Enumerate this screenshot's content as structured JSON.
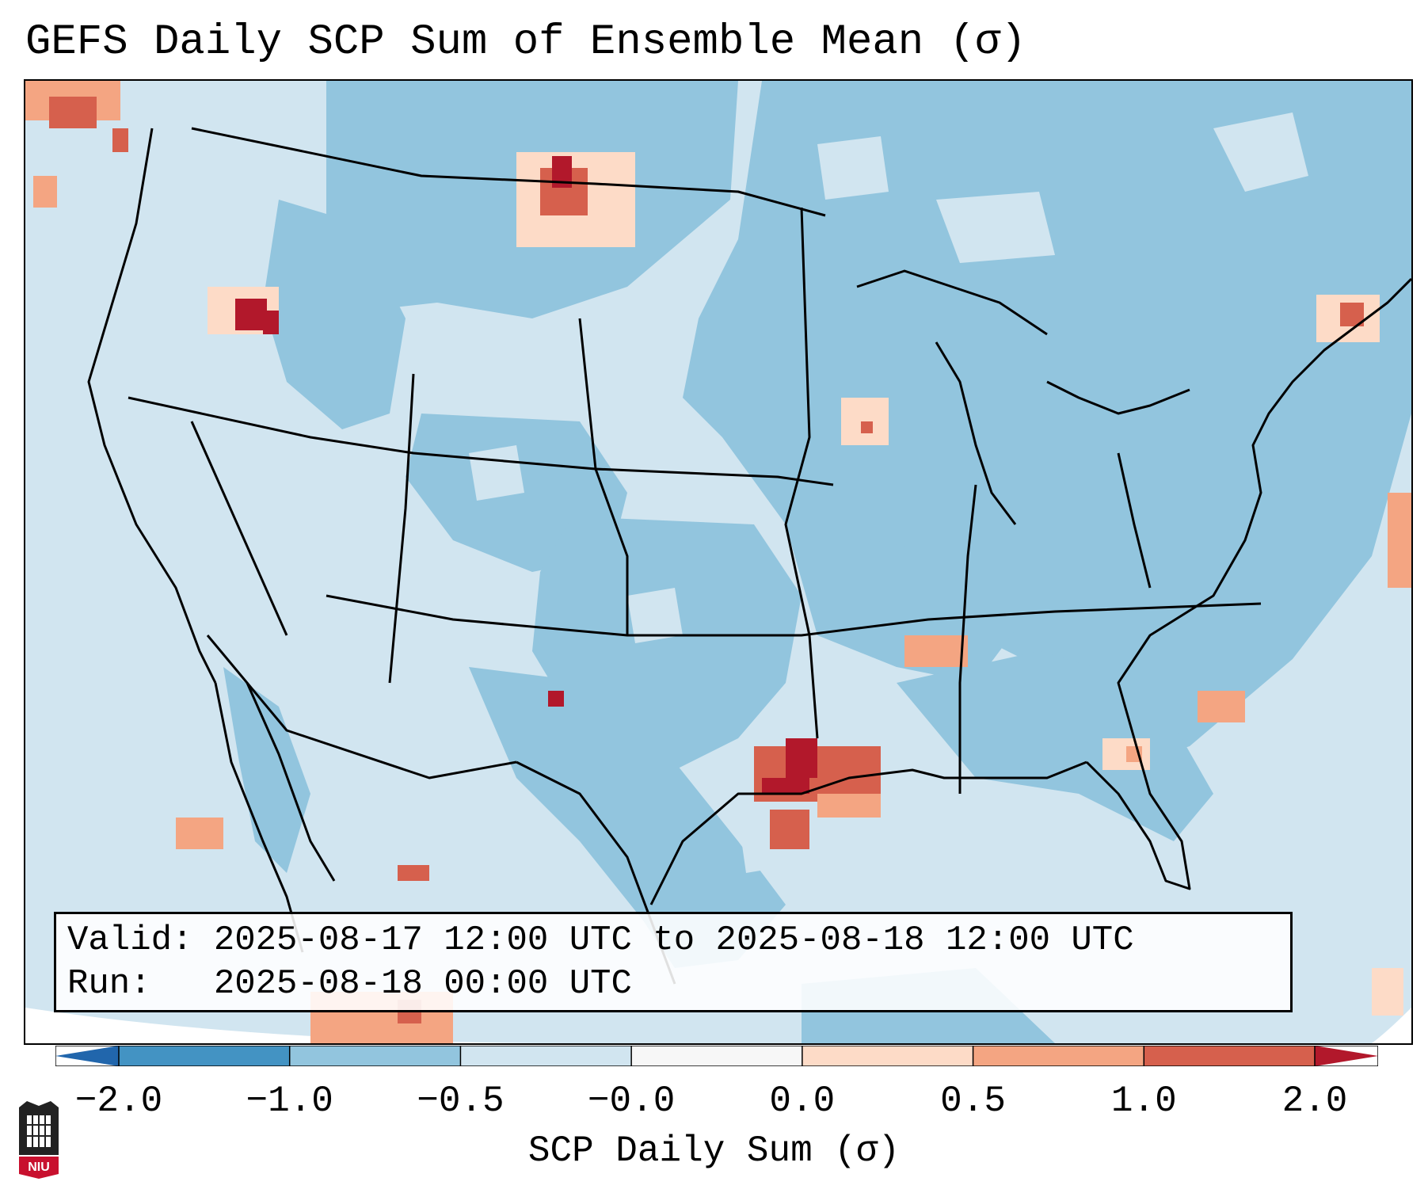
{
  "title": "GEFS Daily SCP Sum of Ensemble Mean (σ)",
  "info": {
    "valid": "Valid: 2025-08-17 12:00 UTC to 2025-08-18 12:00 UTC",
    "run": "Run:   2025-08-18 00:00 UTC"
  },
  "colorbar": {
    "label": "SCP Daily Sum (σ)",
    "ticks": [
      "−2.0",
      "−1.0",
      "−0.5",
      "−0.0",
      "0.0",
      "0.5",
      "1.0",
      "2.0"
    ],
    "colors": [
      "#4393c3",
      "#92c5de",
      "#d1e5f0",
      "#f7f7f7",
      "#fddbc7",
      "#f4a582",
      "#d6604d",
      "#b2182b"
    ],
    "extend_low_color": "#2166ac",
    "extend_high_color": "#b2182b"
  },
  "map": {
    "background_color": "#d1e5f0",
    "hotspots": [
      {
        "region": "Texas/Louisiana coast",
        "value": 2.0
      },
      {
        "region": "Southeast Idaho",
        "value": 2.0
      },
      {
        "region": "Northeast Montana",
        "value": 2.0
      },
      {
        "region": "West Texas",
        "value": 2.0
      },
      {
        "region": "Eastern Iowa",
        "value": 1.0
      },
      {
        "region": "Northern Mississippi",
        "value": 0.5
      },
      {
        "region": "Central Florida",
        "value": 0.5
      },
      {
        "region": "Maine / New Brunswick",
        "value": 1.0
      },
      {
        "region": "Western Atlantic",
        "value": 0.5
      }
    ]
  },
  "logo": {
    "text": "NIU"
  }
}
